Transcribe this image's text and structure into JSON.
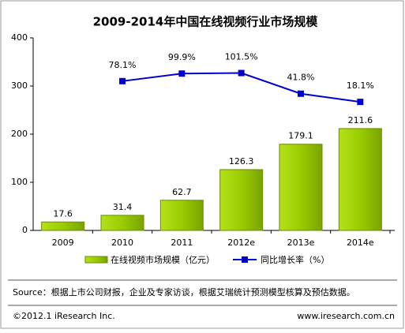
{
  "chart_data": {
    "type": "bar",
    "title": "2009-2014年中国在线视频行业市场规模",
    "categories": [
      "2009",
      "2010",
      "2011",
      "2012e",
      "2013e",
      "2014e"
    ],
    "series": [
      {
        "name": "在线视频市场规模（亿元）",
        "color": "#99cc00",
        "values": [
          17.6,
          31.4,
          62.7,
          126.3,
          179.1,
          211.6
        ]
      },
      {
        "name": "同比增长率（%）",
        "color": "#0000cc",
        "type": "line",
        "axis": "y2",
        "values": [
          null,
          78.1,
          99.9,
          101.5,
          41.8,
          18.1
        ],
        "value_labels": [
          null,
          "78.1%",
          "99.9%",
          "101.5%",
          "41.8%",
          "18.1%"
        ]
      }
    ],
    "ylim": [
      0,
      400
    ],
    "yticks": [
      0,
      100,
      200,
      300,
      400
    ],
    "y2lim": [
      -353,
      203
    ],
    "source": "Source：根据上市公司财报，企业及专家访谈，根据艾瑞统计预测模型核算及预估数据。",
    "copyright": "©2012.1 iResearch Inc.",
    "website": "www.iresearch.com.cn"
  }
}
